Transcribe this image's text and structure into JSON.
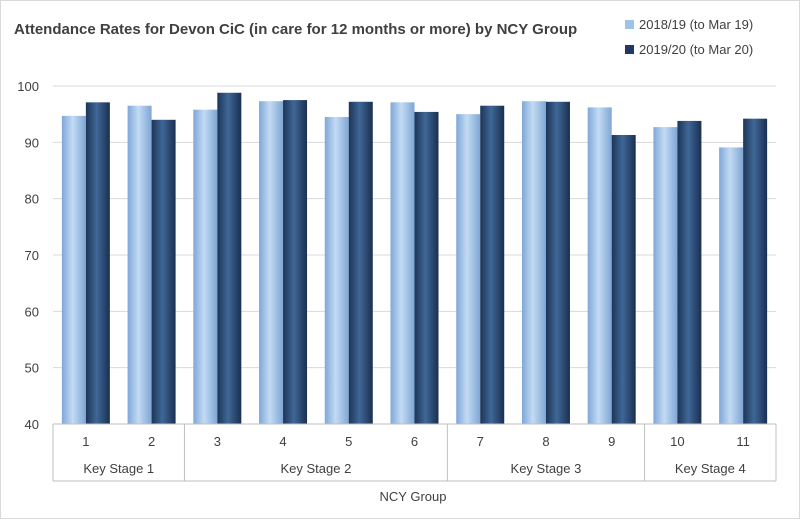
{
  "chart_data": {
    "type": "bar",
    "title": "Attendance Rates for Devon CiC (in care for 12 months or more) by NCY Group",
    "xlabel": "NCY Group",
    "ylabel": "",
    "ylim": [
      40,
      100
    ],
    "yticks": [
      40,
      50,
      60,
      70,
      80,
      90,
      100
    ],
    "grid": true,
    "legend_position": "top-right",
    "categories": [
      "1",
      "2",
      "3",
      "4",
      "5",
      "6",
      "7",
      "8",
      "9",
      "10",
      "11"
    ],
    "groups": [
      {
        "label": "Key Stage 1",
        "categories": [
          "1",
          "2"
        ]
      },
      {
        "label": "Key Stage 2",
        "categories": [
          "3",
          "4",
          "5",
          "6"
        ]
      },
      {
        "label": "Key Stage 3",
        "categories": [
          "7",
          "8",
          "9"
        ]
      },
      {
        "label": "Key Stage 4",
        "categories": [
          "10",
          "11"
        ]
      }
    ],
    "series": [
      {
        "name": "2018/19 (to Mar 19)",
        "color": "#9dc3e6",
        "values": [
          94.7,
          96.5,
          95.8,
          97.3,
          94.5,
          97.1,
          95.0,
          97.3,
          96.2,
          92.7,
          89.1
        ]
      },
      {
        "name": "2019/20 (to Mar 20)",
        "color": "#1f3864",
        "values": [
          97.1,
          94.0,
          98.8,
          97.5,
          97.2,
          95.4,
          96.5,
          97.2,
          91.3,
          93.8,
          94.2
        ]
      }
    ]
  }
}
